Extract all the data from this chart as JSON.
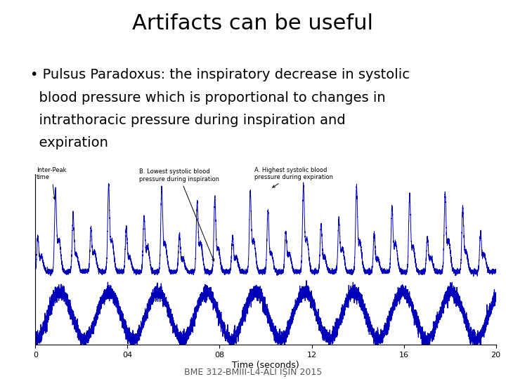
{
  "title": "Artifacts can be useful",
  "bullet_line1": "• Pulsus Paradoxus: the inspiratory decrease in systolic",
  "bullet_line2": "  blood pressure which is proportional to changes in",
  "bullet_line3": "  intrathoracic pressure during inspiration and",
  "bullet_line4": "  expiration",
  "footer": "BME 312-BMIII-L4-ALI İŞIN 2015",
  "signal_color": "#0000BB",
  "background_color": "#ffffff",
  "plot_bg_color": "#ffffff",
  "title_fontsize": 22,
  "bullet_fontsize": 14,
  "footer_fontsize": 9,
  "xlabel": "Time (seconds)",
  "xlim": [
    0,
    20
  ],
  "annotation_A": "A. Highest systolic blood\npressure during expiration",
  "annotation_B": "B. Lowest systolic blood\npressure during inspiration",
  "annotation_inter": "Inter-Peak\ntime"
}
